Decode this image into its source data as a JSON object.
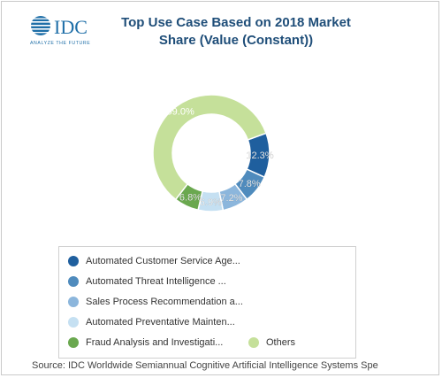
{
  "header": {
    "logo_text": "IDC",
    "logo_tagline": "ANALYZE THE FUTURE",
    "title_line1": "Top Use Case Based on 2018 Market",
    "title_line2": "Share (Value (Constant))"
  },
  "colors": {
    "idc_blue": "#1f6fa8",
    "title": "#1f4e79"
  },
  "chart_data": {
    "type": "pie",
    "donut": true,
    "title": "Top Use Case Based on 2018 Market Share (Value (Constant))",
    "slices": [
      {
        "label": "Automated Customer Service Age...",
        "value": 12.3,
        "color": "#1f5f9e"
      },
      {
        "label": "Automated Threat Intelligence ...",
        "value": 7.8,
        "color": "#4f8bbd"
      },
      {
        "label": "Sales Process Recommendation a...",
        "value": 7.2,
        "color": "#8cb6dc"
      },
      {
        "label": "Automated Preventative Mainten...",
        "value": 6.9,
        "color": "#c5e0f2"
      },
      {
        "label": "Fraud Analysis and Investigati...",
        "value": 6.8,
        "color": "#6aa84f"
      },
      {
        "label": "Others",
        "value": 59.0,
        "color": "#c5e09a"
      }
    ],
    "data_labels": [
      "12.3%",
      "7.8%",
      "7.2%",
      "6.9%",
      "6.8%",
      "59.0%"
    ],
    "legend_position": "bottom"
  },
  "footer": {
    "source": "Source: IDC Worldwide Semiannual Cognitive Artificial Intelligence Systems Spe"
  }
}
